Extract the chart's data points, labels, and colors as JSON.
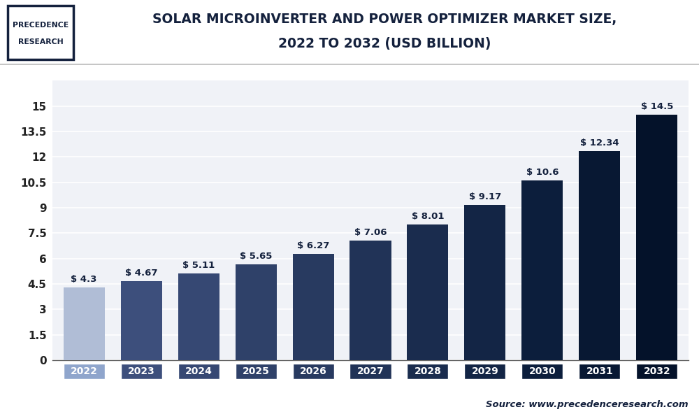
{
  "years": [
    "2022",
    "2023",
    "2024",
    "2025",
    "2026",
    "2027",
    "2028",
    "2029",
    "2030",
    "2031",
    "2032"
  ],
  "values": [
    4.3,
    4.67,
    5.11,
    5.65,
    6.27,
    7.06,
    8.01,
    9.17,
    10.6,
    12.34,
    14.5
  ],
  "labels": [
    "$ 4.3",
    "$ 4.67",
    "$ 5.11",
    "$ 5.65",
    "$ 6.27",
    "$ 7.06",
    "$ 8.01",
    "$ 9.17",
    "$ 10.6",
    "$ 12.34",
    "$ 14.5"
  ],
  "bar_colors": [
    "#b0bdd6",
    "#3d4f7c",
    "#364873",
    "#2f4169",
    "#283a60",
    "#213357",
    "#1a2c4e",
    "#132545",
    "#0c1e3c",
    "#081833",
    "#04122a"
  ],
  "tick_label_colors": [
    "#8fa5cc",
    "#3d4f7c",
    "#364873",
    "#2f4169",
    "#283a60",
    "#213357",
    "#1a2c4e",
    "#132545",
    "#0c1e3c",
    "#081833",
    "#04122a"
  ],
  "title_line1": "SOLAR MICROINVERTER AND POWER OPTIMIZER MARKET SIZE,",
  "title_line2": "2022 TO 2032 (USD BILLION)",
  "yticks": [
    0,
    1.5,
    3,
    4.5,
    6,
    7.5,
    9,
    10.5,
    12,
    13.5,
    15
  ],
  "ylim": [
    0,
    16.5
  ],
  "source_text": "Source: www.precedenceresearch.com",
  "bg_color": "#ffffff",
  "plot_bg_color": "#f0f2f7",
  "grid_color": "#ffffff",
  "title_color": "#14213d",
  "bar_label_color": "#14213d",
  "logo_text1": "PRECEDENCE",
  "logo_text2": "RESEARCH",
  "logo_border_color": "#14213d",
  "header_line_color": "#bbbbbb",
  "source_color": "#14213d"
}
